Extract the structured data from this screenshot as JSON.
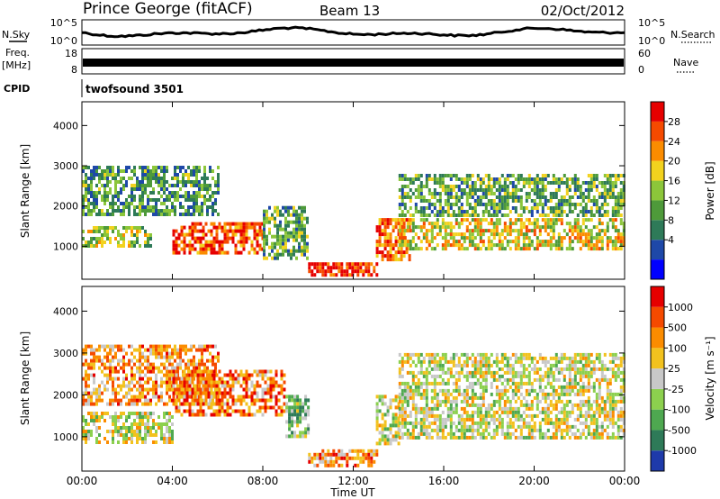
{
  "header": {
    "station": "Prince George (fitACF)",
    "beam": "Beam 13",
    "date": "02/Oct/2012"
  },
  "strips": {
    "nsky_label": "N.Sky",
    "nsky_ticks": [
      "10^5",
      "10^0"
    ],
    "nsearch_label": "N.Search",
    "nsearch_ticks": [
      "10^5",
      "10^0"
    ],
    "freq_label": "Freq.",
    "freq_unit": "[MHz]",
    "freq_ticks": [
      "18",
      "8"
    ],
    "nave_label": "Nave",
    "nave_ticks": [
      "60",
      "0"
    ],
    "cpid_label": "CPID",
    "cpid_value": "twofsound 3501"
  },
  "chart_data": [
    {
      "type": "heatmap",
      "name": "power",
      "ylabel": "Slant Range [km]",
      "xlabel": "Time UT",
      "yticks": [
        "4000",
        "3000",
        "2000",
        "1000"
      ],
      "ylim": [
        180,
        4590
      ],
      "xlim": [
        0,
        24
      ],
      "colorbar_label": "Power [dB]",
      "colorbar_ticks": [
        "28",
        "24",
        "20",
        "16",
        "12",
        "8",
        "4"
      ],
      "colorbar_colors": [
        "#0000ff",
        "#1e48a8",
        "#2e7a58",
        "#4e9a3a",
        "#8cc63a",
        "#f2d21e",
        "#fb8c00",
        "#f54a00",
        "#e60000"
      ],
      "bands": [
        {
          "t0": 0.0,
          "t1": 3.0,
          "r0": 1000,
          "r1": 1500,
          "level": 0.5
        },
        {
          "t0": 0.0,
          "t1": 6.0,
          "r0": 1800,
          "r1": 3000,
          "level": 0.35
        },
        {
          "t0": 4.0,
          "t1": 8.0,
          "r0": 800,
          "r1": 1600,
          "level": 0.85
        },
        {
          "t0": 8.0,
          "t1": 10.0,
          "r0": 700,
          "r1": 2000,
          "level": 0.4
        },
        {
          "t0": 10.0,
          "t1": 13.0,
          "r0": 300,
          "r1": 600,
          "level": 0.9
        },
        {
          "t0": 13.0,
          "t1": 14.5,
          "r0": 700,
          "r1": 1700,
          "level": 0.8
        },
        {
          "t0": 14.0,
          "t1": 24.0,
          "r0": 900,
          "r1": 1700,
          "level": 0.6
        },
        {
          "t0": 14.0,
          "t1": 24.0,
          "r0": 1800,
          "r1": 2800,
          "level": 0.4
        }
      ]
    },
    {
      "type": "heatmap",
      "name": "velocity",
      "ylabel": "Slant Range [km]",
      "xlabel": "Time UT",
      "yticks": [
        "4000",
        "3000",
        "2000",
        "1000"
      ],
      "ylim": [
        180,
        4590
      ],
      "xlim": [
        0,
        24
      ],
      "colorbar_label": "Velocity [m s⁻¹]",
      "colorbar_ticks": [
        "1000",
        "500",
        "100",
        "25",
        "-25",
        "-100",
        "-500",
        "-1000"
      ],
      "colorbar_colors": [
        "#1e3aaa",
        "#2e7a58",
        "#4ea850",
        "#8cd04e",
        "#c8c8c8",
        "#f2c21e",
        "#fb8c00",
        "#f54a00",
        "#e60000"
      ],
      "bands": [
        {
          "t0": 0.0,
          "t1": 4.0,
          "r0": 900,
          "r1": 1600,
          "level": 0.5
        },
        {
          "t0": 0.0,
          "t1": 6.0,
          "r0": 1800,
          "r1": 3200,
          "level": 0.7
        },
        {
          "t0": 4.0,
          "t1": 9.0,
          "r0": 1500,
          "r1": 2600,
          "level": 0.75
        },
        {
          "t0": 9.0,
          "t1": 10.0,
          "r0": 1000,
          "r1": 2000,
          "level": 0.35
        },
        {
          "t0": 10.0,
          "t1": 13.0,
          "r0": 300,
          "r1": 700,
          "level": 0.7
        },
        {
          "t0": 13.0,
          "t1": 14.0,
          "r0": 800,
          "r1": 2000,
          "level": 0.5
        },
        {
          "t0": 14.0,
          "t1": 24.0,
          "r0": 1000,
          "r1": 3000,
          "level": 0.5
        }
      ]
    }
  ],
  "x_axis": {
    "ticks": [
      "00:00",
      "04:00",
      "08:00",
      "12:00",
      "16:00",
      "20:00",
      "00:00"
    ],
    "label": "Time UT"
  }
}
